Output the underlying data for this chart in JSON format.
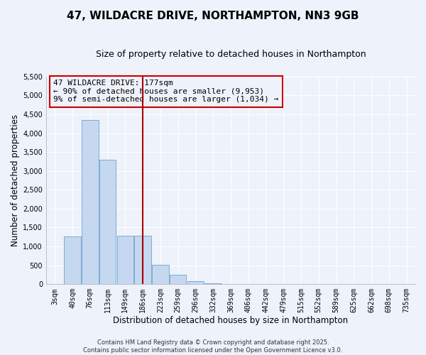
{
  "title": "47, WILDACRE DRIVE, NORTHAMPTON, NN3 9GB",
  "subtitle": "Size of property relative to detached houses in Northampton",
  "xlabel": "Distribution of detached houses by size in Northampton",
  "ylabel": "Number of detached properties",
  "bar_labels": [
    "3sqm",
    "40sqm",
    "76sqm",
    "113sqm",
    "149sqm",
    "186sqm",
    "223sqm",
    "259sqm",
    "296sqm",
    "332sqm",
    "369sqm",
    "406sqm",
    "442sqm",
    "479sqm",
    "515sqm",
    "552sqm",
    "589sqm",
    "625sqm",
    "662sqm",
    "698sqm",
    "735sqm"
  ],
  "bar_values": [
    0,
    1270,
    4350,
    3300,
    1290,
    1290,
    510,
    240,
    80,
    30,
    10,
    5,
    2,
    1,
    0,
    0,
    0,
    0,
    0,
    0,
    0
  ],
  "bar_color": "#c5d8f0",
  "bar_edge_color": "#7aadd4",
  "vline_color": "#aa0000",
  "annotation_title": "47 WILDACRE DRIVE: 177sqm",
  "annotation_line1": "← 90% of detached houses are smaller (9,953)",
  "annotation_line2": "9% of semi-detached houses are larger (1,034) →",
  "annotation_box_color": "#cc0000",
  "ylim": [
    0,
    5500
  ],
  "yticks": [
    0,
    500,
    1000,
    1500,
    2000,
    2500,
    3000,
    3500,
    4000,
    4500,
    5000,
    5500
  ],
  "bg_color": "#eef2fa",
  "grid_color": "#ffffff",
  "footer1": "Contains HM Land Registry data © Crown copyright and database right 2025.",
  "footer2": "Contains public sector information licensed under the Open Government Licence v3.0.",
  "title_fontsize": 11,
  "subtitle_fontsize": 9,
  "axis_label_fontsize": 8.5,
  "tick_fontsize": 7,
  "annotation_fontsize": 8,
  "footer_fontsize": 6
}
